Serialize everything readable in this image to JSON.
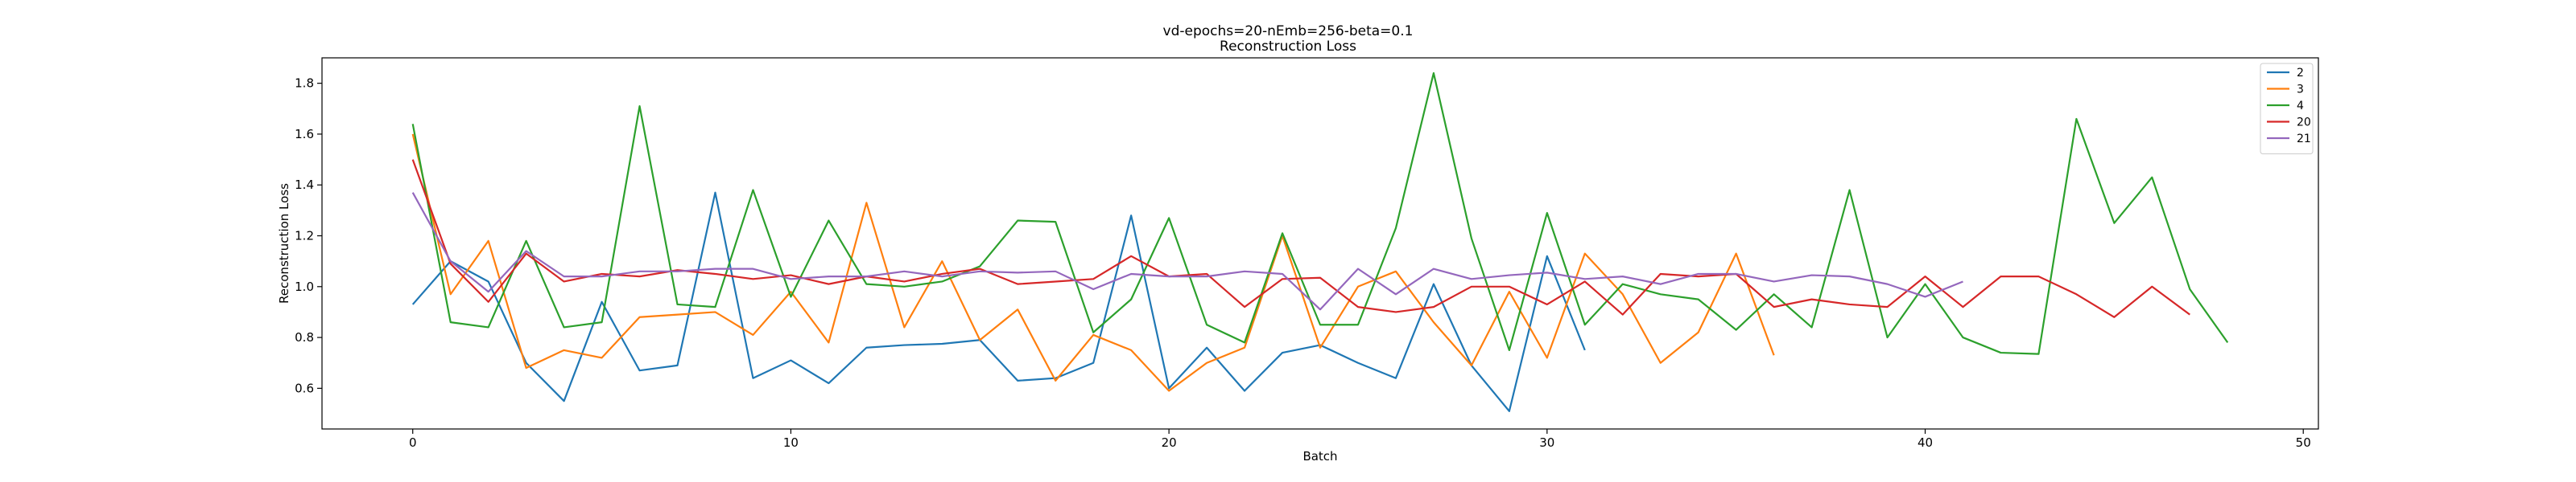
{
  "chart_data": {
    "type": "line",
    "title": "vd-epochs=20-nEmb=256-beta=0.1",
    "subtitle": "Reconstruction Loss",
    "xlabel": "Batch",
    "ylabel": "Reconstruction Loss",
    "xlim": [
      -2.4,
      50.4
    ],
    "ylim": [
      0.44,
      1.9
    ],
    "xticks": [
      0,
      10,
      20,
      30,
      40,
      50
    ],
    "yticks": [
      0.6,
      0.8,
      1.0,
      1.2,
      1.4,
      1.6,
      1.8
    ],
    "ytick_labels": [
      "0.6",
      "0.8",
      "1.0",
      "1.2",
      "1.4",
      "1.6",
      "1.8"
    ],
    "grid": false,
    "legend_position": "top-right",
    "series": [
      {
        "name": "2",
        "color": "#1f77b4",
        "values": [
          0.93,
          1.1,
          1.02,
          0.7,
          0.55,
          0.94,
          0.67,
          0.69,
          1.37,
          0.64,
          0.71,
          0.62,
          0.76,
          0.77,
          0.775,
          0.79,
          0.63,
          0.64,
          0.7,
          1.28,
          0.6,
          0.76,
          0.59,
          0.74,
          0.77,
          0.7,
          0.64,
          1.01,
          0.69,
          0.51,
          1.12,
          0.75
        ]
      },
      {
        "name": "3",
        "color": "#ff7f0e",
        "values": [
          1.6,
          0.97,
          1.18,
          0.68,
          0.75,
          0.72,
          0.88,
          0.89,
          0.9,
          0.81,
          0.98,
          0.78,
          1.33,
          0.84,
          1.1,
          0.79,
          0.91,
          0.63,
          0.81,
          0.75,
          0.59,
          0.7,
          0.76,
          1.2,
          0.76,
          1.0,
          1.06,
          0.86,
          0.69,
          0.98,
          0.72,
          1.13,
          0.97,
          0.7,
          0.82,
          1.13,
          0.73
        ]
      },
      {
        "name": "4",
        "color": "#2ca02c",
        "values": [
          1.64,
          0.86,
          0.84,
          1.18,
          0.84,
          0.86,
          1.71,
          0.93,
          0.92,
          1.38,
          0.96,
          1.26,
          1.01,
          1.0,
          1.02,
          1.08,
          1.26,
          1.255,
          0.82,
          0.95,
          1.27,
          0.85,
          0.78,
          1.21,
          0.85,
          0.85,
          1.23,
          1.84,
          1.19,
          0.75,
          1.29,
          0.85,
          1.01,
          0.97,
          0.95,
          0.83,
          0.97,
          0.84,
          1.38,
          0.8,
          1.01,
          0.8,
          0.74,
          0.735,
          1.66,
          1.25,
          1.43,
          0.99,
          0.78
        ]
      },
      {
        "name": "20",
        "color": "#d62728",
        "values": [
          1.5,
          1.09,
          0.94,
          1.13,
          1.02,
          1.05,
          1.04,
          1.065,
          1.05,
          1.03,
          1.045,
          1.01,
          1.04,
          1.02,
          1.05,
          1.07,
          1.01,
          1.02,
          1.03,
          1.12,
          1.04,
          1.05,
          0.92,
          1.03,
          1.035,
          0.92,
          0.9,
          0.92,
          1.0,
          1.0,
          0.93,
          1.02,
          0.89,
          1.05,
          1.04,
          1.05,
          0.92,
          0.95,
          0.93,
          0.92,
          1.04,
          0.92,
          1.04,
          1.04,
          0.97,
          0.88,
          1.0,
          0.89
        ]
      },
      {
        "name": "21",
        "color": "#9467bd",
        "values": [
          1.37,
          1.1,
          0.98,
          1.14,
          1.04,
          1.04,
          1.06,
          1.06,
          1.07,
          1.07,
          1.03,
          1.04,
          1.04,
          1.06,
          1.04,
          1.06,
          1.055,
          1.06,
          0.99,
          1.05,
          1.04,
          1.04,
          1.06,
          1.05,
          0.91,
          1.07,
          0.97,
          1.07,
          1.03,
          1.045,
          1.055,
          1.03,
          1.04,
          1.01,
          1.05,
          1.05,
          1.02,
          1.045,
          1.04,
          1.01,
          0.96,
          1.02
        ]
      }
    ]
  }
}
